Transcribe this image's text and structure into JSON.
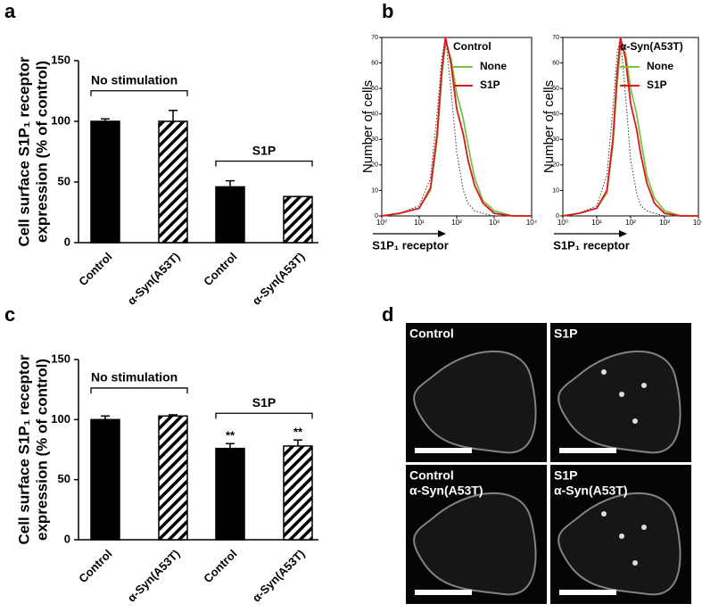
{
  "panel_labels": [
    "a",
    "b",
    "c",
    "d"
  ],
  "chart_data": [
    {
      "type": "bar",
      "ylabel": [
        "Cell surface S1P₁ receptor",
        "expression (% of control)"
      ],
      "categories": [
        "Control",
        "α-Syn(A53T)",
        "Control",
        "α-Syn(A53T)"
      ],
      "values": [
        100,
        100,
        46,
        38
      ],
      "errors": [
        2,
        9,
        5,
        0
      ],
      "fills": [
        "solid",
        "hatched",
        "solid",
        "hatched"
      ],
      "color": "#000000",
      "groups": [
        "No stimulation",
        "S1P"
      ],
      "ylim": [
        0,
        150
      ],
      "yticks": [
        0,
        50,
        100,
        150
      ]
    },
    {
      "type": "line",
      "xscale": "log",
      "legend_title": "Control",
      "ylabel": "Number of cells",
      "xlabel": "S1P₁ receptor",
      "x": [
        1,
        3,
        10,
        20,
        30,
        40,
        50,
        70,
        100,
        150,
        200,
        300,
        500,
        1000,
        3000,
        10000
      ],
      "series": [
        {
          "color": "#333333",
          "dash": true,
          "values": [
            0,
            1,
            4,
            15,
            40,
            62,
            70,
            50,
            25,
            10,
            5,
            2,
            1,
            0,
            0,
            0
          ]
        },
        {
          "name": "None",
          "color": "#7cc243",
          "values": [
            0,
            1,
            3,
            10,
            30,
            55,
            68,
            62,
            48,
            38,
            28,
            15,
            6,
            2,
            0,
            0
          ]
        },
        {
          "name": "S1P",
          "color": "#d7191c",
          "values": [
            0,
            1,
            3,
            11,
            32,
            57,
            70,
            60,
            42,
            32,
            22,
            12,
            5,
            1,
            0,
            0
          ]
        }
      ],
      "xlim": [
        1,
        10000
      ],
      "xticks": [
        {
          "value": 1,
          "label": "10⁰"
        },
        {
          "value": 10,
          "label": "10¹"
        },
        {
          "value": 100,
          "label": "10²"
        },
        {
          "value": 1000,
          "label": "10³"
        },
        {
          "value": 10000,
          "label": "10⁴"
        }
      ],
      "ylim": [
        0,
        70
      ],
      "yticks": [
        0,
        10,
        20,
        30,
        40,
        50,
        60,
        70
      ]
    },
    {
      "type": "line",
      "xscale": "log",
      "legend_title": "α-Syn(A53T)",
      "ylabel": "Number of cells",
      "xlabel": "S1P₁ receptor",
      "x": [
        1,
        3,
        10,
        20,
        30,
        40,
        50,
        70,
        100,
        150,
        200,
        300,
        500,
        1000,
        3000,
        10000
      ],
      "series": [
        {
          "color": "#333333",
          "dash": true,
          "values": [
            0,
            1,
            4,
            16,
            42,
            64,
            70,
            48,
            22,
            9,
            4,
            2,
            1,
            0,
            0,
            0
          ]
        },
        {
          "name": "None",
          "color": "#7cc243",
          "values": [
            0,
            1,
            3,
            9,
            28,
            52,
            66,
            64,
            50,
            40,
            30,
            16,
            7,
            2,
            0,
            0
          ]
        },
        {
          "name": "S1P",
          "color": "#d7191c",
          "values": [
            0,
            1,
            3,
            10,
            30,
            56,
            70,
            62,
            44,
            34,
            24,
            13,
            5,
            1,
            0,
            0
          ]
        }
      ],
      "xlim": [
        1,
        10000
      ],
      "xticks": [
        {
          "value": 1,
          "label": "10⁰"
        },
        {
          "value": 10,
          "label": "10¹"
        },
        {
          "value": 100,
          "label": "10²"
        },
        {
          "value": 1000,
          "label": "10³"
        },
        {
          "value": 10000,
          "label": "10⁴"
        }
      ],
      "ylim": [
        0,
        70
      ],
      "yticks": [
        0,
        10,
        20,
        30,
        40,
        50,
        60,
        70
      ]
    },
    {
      "type": "bar",
      "ylabel": [
        "Cell surface S1P₁ receptor",
        "expression (% of control)"
      ],
      "categories": [
        "Control",
        "α-Syn(A53T)",
        "Control",
        "α-Syn(A53T)"
      ],
      "values": [
        100,
        103,
        76,
        78
      ],
      "errors": [
        3,
        1,
        4,
        5
      ],
      "fills": [
        "solid",
        "hatched",
        "solid",
        "hatched"
      ],
      "color": "#000000",
      "groups": [
        "No stimulation",
        "S1P"
      ],
      "value_annotations": [
        null,
        null,
        "**",
        "**"
      ],
      "ylim": [
        0,
        150
      ],
      "yticks": [
        0,
        50,
        100,
        150
      ]
    }
  ],
  "images": [
    [
      "Control"
    ],
    [
      "S1P"
    ],
    [
      "Control",
      "α-Syn(A53T)"
    ],
    [
      "S1P",
      "α-Syn(A53T)"
    ]
  ]
}
